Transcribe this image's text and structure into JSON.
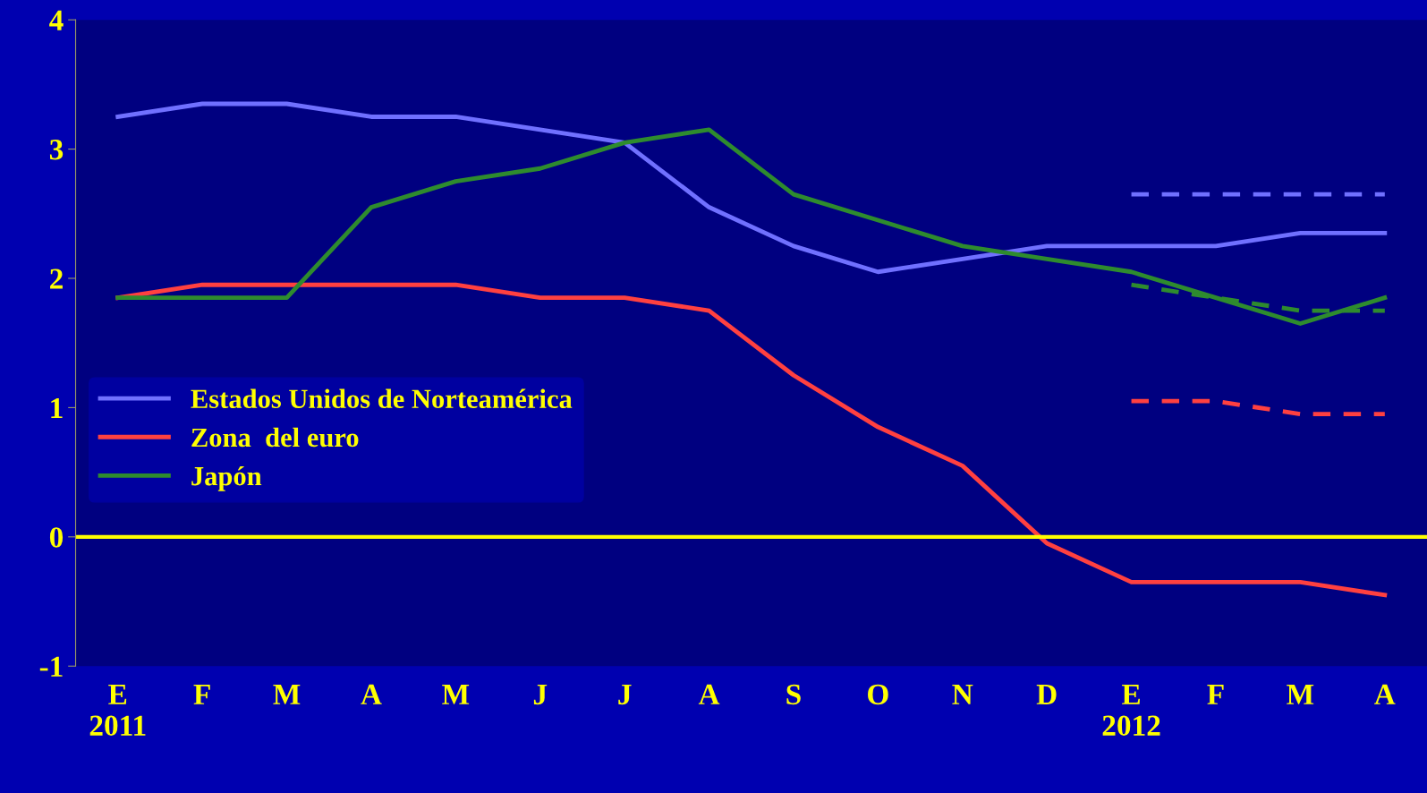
{
  "chart_data": {
    "type": "line",
    "categories": [
      "E\n2011",
      "F",
      "M",
      "A",
      "M",
      "J",
      "J",
      "A",
      "S",
      "O",
      "N",
      "D",
      "E\n2012",
      "F",
      "M",
      "A"
    ],
    "ylim": [
      -1,
      4
    ],
    "yticks": [
      -1,
      0,
      1,
      2,
      3,
      4
    ],
    "grid": false,
    "legend": "center left",
    "marker": "none",
    "series": [
      {
        "name": "Estados Unidos de Norteamérica",
        "color": "#7070ff",
        "line_style": "solid",
        "values": [
          3.25,
          3.35,
          3.35,
          3.25,
          3.25,
          3.15,
          3.05,
          2.55,
          2.25,
          2.05,
          2.15,
          2.25,
          2.25,
          2.25,
          2.35,
          2.35
        ]
      },
      {
        "name": "Zona  del euro",
        "color": "#ff4040",
        "line_style": "solid",
        "values": [
          1.85,
          1.95,
          1.95,
          1.95,
          1.95,
          1.85,
          1.85,
          1.75,
          1.25,
          0.85,
          0.55,
          -0.05,
          -0.35,
          -0.35,
          -0.35,
          -0.45
        ]
      },
      {
        "name": "Japón",
        "color": "#2e8b2e",
        "line_style": "solid",
        "values": [
          1.85,
          1.85,
          1.85,
          2.55,
          2.75,
          2.85,
          3.05,
          3.15,
          2.65,
          2.45,
          2.25,
          2.15,
          2.05,
          1.85,
          1.65,
          1.85
        ]
      },
      {
        "color": "#7070ff",
        "line_style": "dashed",
        "values": [
          null,
          null,
          null,
          null,
          null,
          null,
          null,
          null,
          null,
          null,
          null,
          null,
          2.65,
          2.65,
          2.65,
          2.65
        ]
      },
      {
        "color": "#ff4040",
        "line_style": "dashed",
        "values": [
          null,
          null,
          null,
          null,
          null,
          null,
          null,
          null,
          null,
          null,
          null,
          null,
          1.05,
          1.05,
          0.95,
          0.95
        ]
      },
      {
        "color": "#2e8b2e",
        "line_style": "dashed",
        "values": [
          null,
          null,
          null,
          null,
          null,
          null,
          null,
          null,
          null,
          null,
          null,
          null,
          1.95,
          1.85,
          1.75,
          1.75
        ]
      }
    ],
    "ref_lines": [
      {
        "axis": "y",
        "value": 0,
        "color": "#ffff00",
        "line_style": "solid"
      }
    ]
  }
}
